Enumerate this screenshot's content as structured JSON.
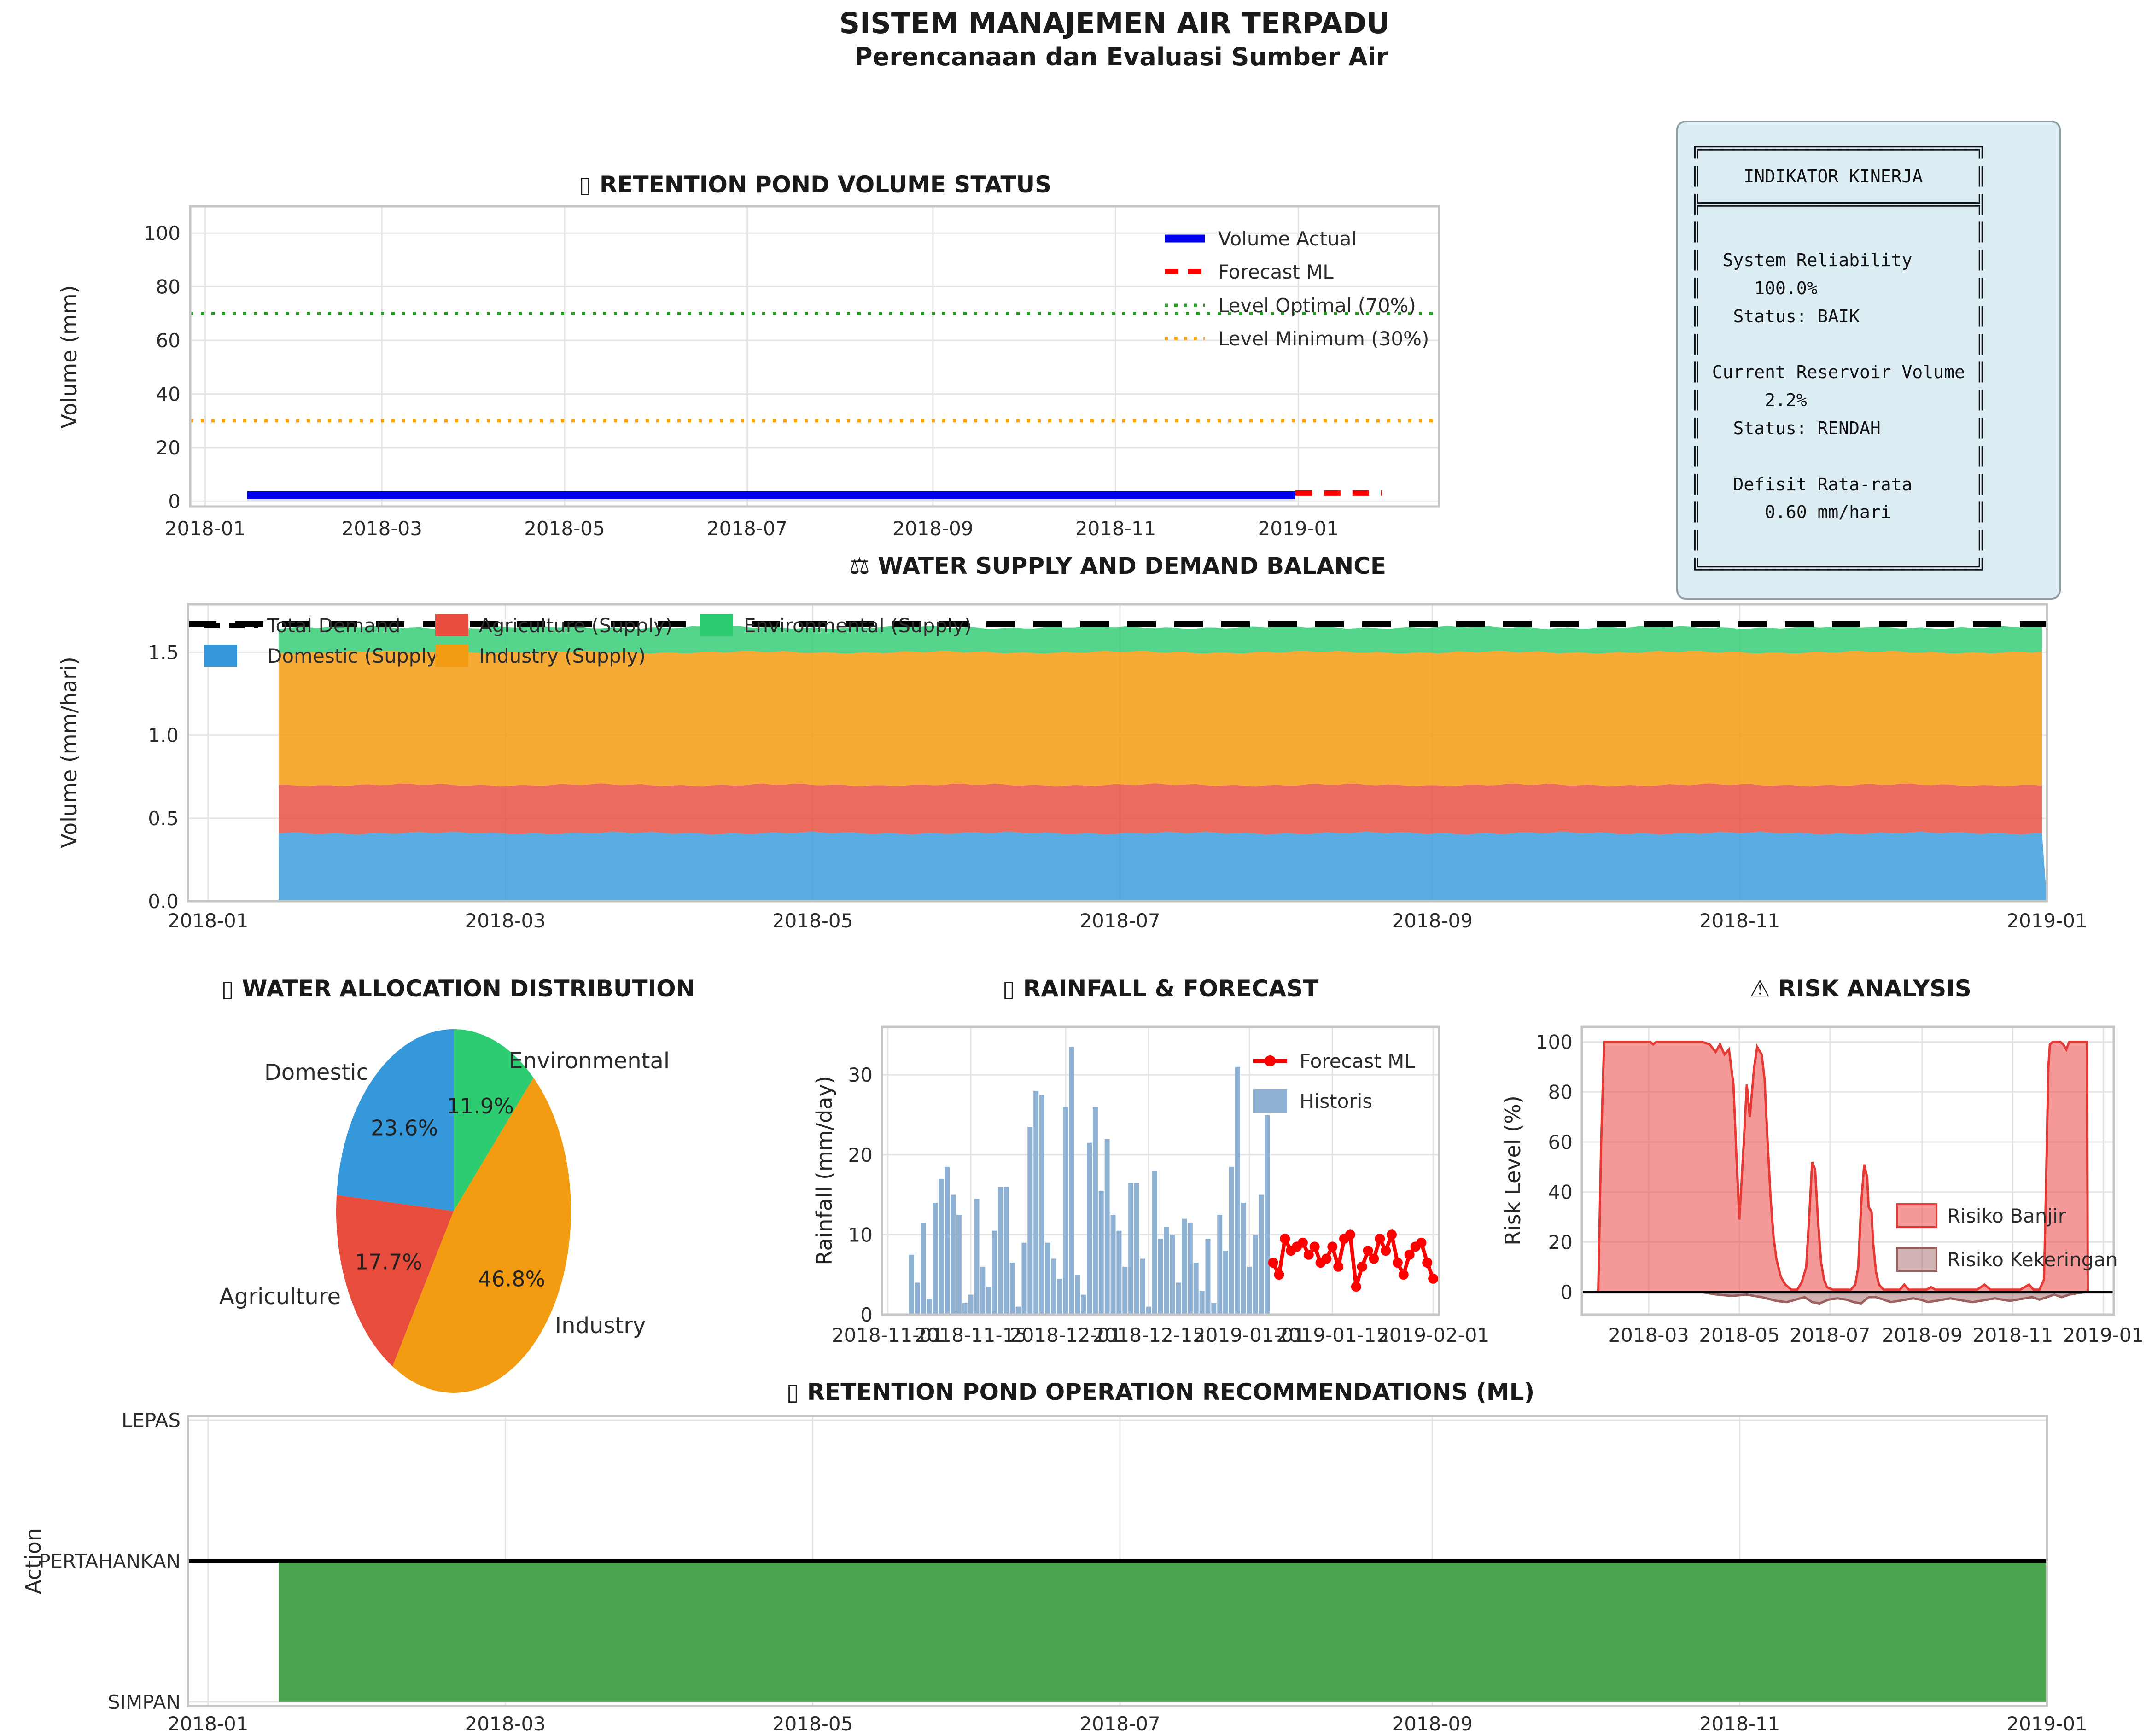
{
  "header": {
    "title": "SISTEM MANAJEMEN AIR TERPADU",
    "subtitle": "Perencanaan dan Evaluasi Sumber Air"
  },
  "indicator_panel": {
    "lines": [
      "╔══════════════════════════╗",
      "║    INDIKATOR KINERJA     ║",
      "╠══════════════════════════╣",
      "║                          ║",
      "║  System Reliability      ║",
      "║     100.0%               ║",
      "║   Status: BAIK           ║",
      "║                          ║",
      "║ Current Reservoir Volume ║",
      "║      2.2%                ║",
      "║   Status: RENDAH         ║",
      "║                          ║",
      "║   Defisit Rata-rata      ║",
      "║      0.60 mm/hari        ║",
      "║                          ║",
      "╚══════════════════════════╝"
    ]
  },
  "chart_data": [
    {
      "id": "volume",
      "type": "line",
      "title": "▯ RETENTION POND VOLUME STATUS",
      "ylabel": "Volume (mm)",
      "yticks": [
        0,
        20,
        40,
        60,
        80,
        100
      ],
      "ylim": [
        -2,
        110
      ],
      "xlim_days": [
        -5,
        412
      ],
      "xticks": {
        "days": [
          0,
          59,
          120,
          181,
          243,
          304,
          365
        ],
        "labels": [
          "2018-01",
          "2018-03",
          "2018-05",
          "2018-07",
          "2018-09",
          "2018-11",
          "2019-01"
        ]
      },
      "grid": true,
      "legend_position": "upper right",
      "series": [
        {
          "name": "Volume Actual",
          "color": "#0000ee",
          "style": "solid",
          "x": [
            14,
            364
          ],
          "y": 2.2
        },
        {
          "name": "Forecast ML",
          "color": "#ff0000",
          "style": "dashed",
          "x": [
            364,
            393
          ],
          "y": 3.0
        },
        {
          "name": "Level Optimal (70%)",
          "color": "#2ca02c",
          "style": "dotted",
          "y": 70
        },
        {
          "name": "Level Minimum (30%)",
          "color": "#ffa500",
          "style": "dotted",
          "y": 30
        }
      ],
      "fill_under_actual": "rgba(40,40,255,0.15)"
    },
    {
      "id": "balance",
      "type": "stacked-area",
      "title": "⚖ WATER SUPPLY AND DEMAND BALANCE",
      "ylabel": "Volume (mm/hari)",
      "ytick_labels": [
        "0.0",
        "0.5",
        "1.0",
        "1.5"
      ],
      "yticks": [
        0,
        0.5,
        1.0,
        1.5
      ],
      "ylim": [
        0,
        1.79
      ],
      "xlim_days": [
        -4,
        365
      ],
      "xticks": {
        "days": [
          0,
          59,
          120,
          181,
          243,
          304,
          365
        ],
        "labels": [
          "2018-01",
          "2018-03",
          "2018-05",
          "2018-07",
          "2018-09",
          "2018-11",
          "2019-01"
        ]
      },
      "data_days": [
        14,
        365
      ],
      "layers": [
        {
          "name": "Domestic (Supply)",
          "legend_color": "#3498db",
          "fill": "rgba(52,152,219,0.82)",
          "top": 0.41
        },
        {
          "name": "Agriculture (Supply)",
          "legend_color": "#e74c3c",
          "fill": "rgba(231,76,60,0.82)",
          "top": 0.7
        },
        {
          "name": "Industry (Supply)",
          "legend_color": "#f39c12",
          "fill": "rgba(243,156,18,0.85)",
          "top": 1.5
        },
        {
          "name": "Environmental (Supply)",
          "legend_color": "#2ecc71",
          "fill": "rgba(46,204,113,0.82)",
          "top": 1.65
        }
      ],
      "total_demand": {
        "name": "Total Demand",
        "value": 1.67,
        "color": "#000000"
      }
    },
    {
      "id": "allocation",
      "type": "pie",
      "title": "▯ WATER ALLOCATION DISTRIBUTION",
      "start_angle": 90,
      "counterclock": true,
      "slices": [
        {
          "label": "Domestic",
          "pct": 23.6,
          "pct_label": "23.6%",
          "color": "#3498db"
        },
        {
          "label": "Agriculture",
          "pct": 17.7,
          "pct_label": "17.7%",
          "color": "#e74c3c"
        },
        {
          "label": "Industry",
          "pct": 46.8,
          "pct_label": "46.8%",
          "color": "#f39c12"
        },
        {
          "label": "Environmental",
          "pct": 11.9,
          "pct_label": "11.9%",
          "color": "#2ecc71"
        }
      ]
    },
    {
      "id": "rainfall",
      "type": "bar+line",
      "title": "▯ RAINFALL & FORECAST",
      "ylabel": "Rainfall (mm/day)",
      "yticks": [
        0,
        10,
        20,
        30
      ],
      "ylim": [
        0,
        36
      ],
      "xlim_days": [
        -1,
        93
      ],
      "xticks": {
        "days": [
          0,
          14,
          30,
          44,
          61,
          75,
          92
        ],
        "labels": [
          "2018-11-01",
          "2018-11-15",
          "2018-12-01",
          "2018-12-15",
          "2019-01-01",
          "2019-01-15",
          "2019-02-01"
        ]
      },
      "bars": {
        "name": "Historis",
        "color": "#8fb2d4",
        "start_day": 4,
        "values": [
          7.5,
          4,
          11.5,
          2,
          14,
          17,
          18.5,
          15,
          12.5,
          1.5,
          2.5,
          14.5,
          6,
          3.5,
          10.5,
          16,
          16,
          6.5,
          1,
          9,
          23.5,
          28,
          27.5,
          9,
          7,
          4.5,
          26,
          33.5,
          5,
          2.5,
          21.5,
          26,
          15.5,
          22,
          12.5,
          10.5,
          6,
          16.5,
          16.5,
          7,
          1,
          18,
          9.5,
          11,
          10,
          4,
          12,
          11.5,
          6.5,
          3,
          9.5,
          1.5,
          12.5,
          8,
          18.5,
          31,
          14,
          6,
          10,
          15,
          25
        ]
      },
      "forecast": {
        "name": "Forecast ML",
        "color": "#ff0000",
        "start_day": 65,
        "values": [
          6.5,
          5,
          9.5,
          8,
          8.5,
          9,
          7.5,
          8.5,
          6.5,
          7,
          8.5,
          6,
          9.5,
          10,
          3.5,
          6,
          8,
          7,
          9.5,
          8,
          10,
          6.5,
          5,
          7.5,
          8.5,
          9,
          6.5,
          4.5
        ]
      }
    },
    {
      "id": "risk",
      "type": "area",
      "title": "⚠ RISK ANALYSIS",
      "ylabel": "Risk Level (%)",
      "yticks": [
        0,
        20,
        40,
        60,
        80,
        100
      ],
      "ylim": [
        -9,
        106
      ],
      "xlim_days": [
        14,
        372
      ],
      "xticks": {
        "days": [
          59,
          120,
          181,
          243,
          304,
          365
        ],
        "labels": [
          "2018-03",
          "2018-05",
          "2018-07",
          "2018-09",
          "2018-11",
          "2019-01"
        ]
      },
      "zero_line": true,
      "flood": {
        "name": "Risiko Banjir",
        "fill": "rgba(237,68,68,0.55)",
        "stroke": "#e53935",
        "points": [
          [
            25,
            0
          ],
          [
            27,
            60
          ],
          [
            29,
            100
          ],
          [
            60,
            100
          ],
          [
            62,
            99
          ],
          [
            64,
            100
          ],
          [
            95,
            100
          ],
          [
            100,
            99
          ],
          [
            104,
            96
          ],
          [
            107,
            99
          ],
          [
            110,
            95
          ],
          [
            113,
            97
          ],
          [
            116,
            83
          ],
          [
            118,
            55
          ],
          [
            120,
            29
          ],
          [
            123,
            60
          ],
          [
            125,
            83
          ],
          [
            127,
            70
          ],
          [
            130,
            90
          ],
          [
            132,
            98
          ],
          [
            135,
            95
          ],
          [
            137,
            85
          ],
          [
            139,
            60
          ],
          [
            141,
            38
          ],
          [
            143,
            22
          ],
          [
            145,
            13
          ],
          [
            148,
            6
          ],
          [
            151,
            3
          ],
          [
            155,
            1
          ],
          [
            159,
            1
          ],
          [
            162,
            4
          ],
          [
            165,
            10
          ],
          [
            167,
            30
          ],
          [
            169,
            52
          ],
          [
            171,
            49
          ],
          [
            173,
            28
          ],
          [
            175,
            12
          ],
          [
            177,
            5
          ],
          [
            179,
            2
          ],
          [
            183,
            1
          ],
          [
            190,
            1
          ],
          [
            195,
            1
          ],
          [
            198,
            3
          ],
          [
            200,
            10
          ],
          [
            202,
            35
          ],
          [
            204,
            51
          ],
          [
            206,
            46
          ],
          [
            207,
            34
          ],
          [
            209,
            32
          ],
          [
            210,
            20
          ],
          [
            212,
            8
          ],
          [
            214,
            3
          ],
          [
            217,
            1
          ],
          [
            228,
            1
          ],
          [
            231,
            3
          ],
          [
            234,
            1
          ],
          [
            246,
            1
          ],
          [
            249,
            2
          ],
          [
            252,
            1
          ],
          [
            263,
            1
          ],
          [
            272,
            1
          ],
          [
            280,
            1
          ],
          [
            285,
            3
          ],
          [
            289,
            1
          ],
          [
            300,
            1
          ],
          [
            309,
            1
          ],
          [
            315,
            3
          ],
          [
            318,
            1
          ],
          [
            322,
            1
          ],
          [
            325,
            5
          ],
          [
            326,
            30
          ],
          [
            327,
            60
          ],
          [
            328,
            90
          ],
          [
            329,
            99
          ],
          [
            331,
            100
          ],
          [
            336,
            100
          ],
          [
            338,
            99
          ],
          [
            340,
            97
          ],
          [
            342,
            100
          ],
          [
            345,
            100
          ],
          [
            354,
            100
          ],
          [
            354.5,
            0
          ]
        ]
      },
      "drought": {
        "name": "Risiko Kekeringan",
        "fill": "rgba(152,84,84,0.45)",
        "stroke": "#9b5f5f",
        "points": [
          [
            95,
            0
          ],
          [
            105,
            -1
          ],
          [
            115,
            -1.5
          ],
          [
            125,
            -1
          ],
          [
            135,
            -2
          ],
          [
            145,
            -3.5
          ],
          [
            152,
            -4
          ],
          [
            158,
            -3
          ],
          [
            164,
            -2
          ],
          [
            169,
            -4
          ],
          [
            174,
            -4.5
          ],
          [
            180,
            -3
          ],
          [
            186,
            -2.5
          ],
          [
            192,
            -3
          ],
          [
            197,
            -4
          ],
          [
            202,
            -4.5
          ],
          [
            207,
            -2
          ],
          [
            212,
            -2
          ],
          [
            217,
            -3
          ],
          [
            222,
            -4
          ],
          [
            227,
            -3.5
          ],
          [
            232,
            -3
          ],
          [
            237,
            -2.5
          ],
          [
            242,
            -3
          ],
          [
            247,
            -4
          ],
          [
            252,
            -3.5
          ],
          [
            257,
            -3
          ],
          [
            262,
            -2.5
          ],
          [
            267,
            -3
          ],
          [
            272,
            -3.5
          ],
          [
            277,
            -4
          ],
          [
            282,
            -3.5
          ],
          [
            287,
            -3
          ],
          [
            292,
            -2.5
          ],
          [
            297,
            -3
          ],
          [
            302,
            -3.5
          ],
          [
            307,
            -3
          ],
          [
            312,
            -2.5
          ],
          [
            317,
            -2
          ],
          [
            322,
            -3
          ],
          [
            327,
            -2
          ],
          [
            332,
            -1
          ],
          [
            337,
            -2
          ],
          [
            342,
            -1
          ],
          [
            347,
            -0.5
          ],
          [
            352,
            0
          ]
        ]
      }
    },
    {
      "id": "recommendation",
      "type": "step-fill",
      "title": "▯ RETENTION POND OPERATION RECOMMENDATIONS (ML)",
      "ylabel": "Action",
      "ytick_labels": [
        "SIMPAN",
        "PERTAHANKAN",
        "LEPAS"
      ],
      "ylim": [
        -0.03,
        2.03
      ],
      "xlim_days": [
        -4,
        365
      ],
      "xticks": {
        "days": [
          0,
          59,
          120,
          181,
          243,
          304,
          365
        ],
        "labels": [
          "2018-01",
          "2018-03",
          "2018-05",
          "2018-07",
          "2018-09",
          "2018-11",
          "2019-01"
        ]
      },
      "fill": {
        "color": "#4aa44e",
        "from_level": 0,
        "to_level": 1,
        "days": [
          14,
          365
        ],
        "level_label": "PERTAHANKAN"
      },
      "line": {
        "value": 1,
        "color": "#000000"
      }
    }
  ]
}
